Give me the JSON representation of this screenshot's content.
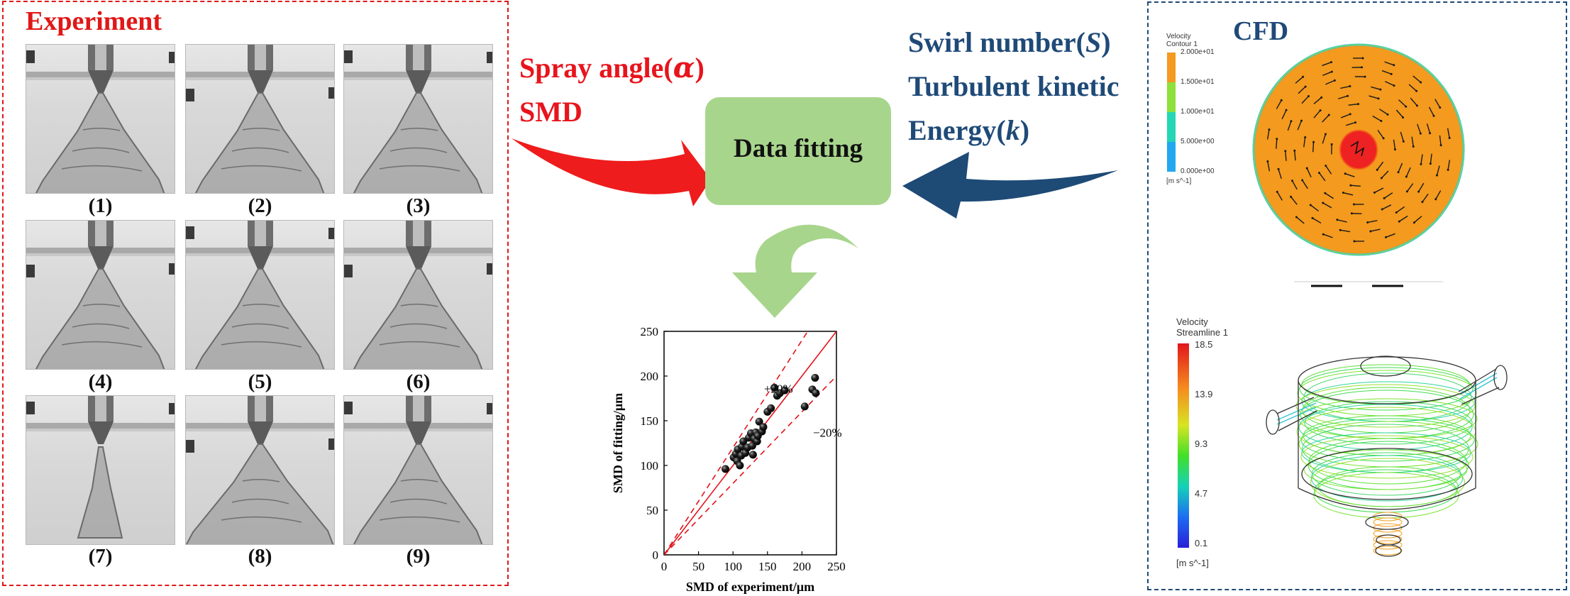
{
  "experiment": {
    "title": "Experiment",
    "photos": [
      {
        "label": "(1)"
      },
      {
        "label": "(2)"
      },
      {
        "label": "(3)"
      },
      {
        "label": "(4)"
      },
      {
        "label": "(5)"
      },
      {
        "label": "(6)"
      },
      {
        "label": "(7)"
      },
      {
        "label": "(8)"
      },
      {
        "label": "(9)"
      }
    ]
  },
  "inputs_left": {
    "line1_prefix": "Spray angle(",
    "line1_symbol": "α",
    "line1_suffix": ")",
    "line2": "SMD"
  },
  "inputs_right": {
    "line1_prefix": "Swirl number(",
    "line1_symbol": "S",
    "line1_suffix": ")",
    "line2": "Turbulent kinetic",
    "line3_prefix": "Energy(",
    "line3_symbol": "k",
    "line3_suffix": ")"
  },
  "fitting": {
    "label": "Data fitting"
  },
  "cfd": {
    "title": "CFD",
    "contour_legend": {
      "title1": "Velocity",
      "title2": "Contour 1",
      "ticks": [
        "2.000e+01",
        "1.500e+01",
        "1.000e+01",
        "5.000e+00",
        "0.000e+00"
      ],
      "unit": "[m s^-1]",
      "colors": [
        "#f39a1f",
        "#8ee03a",
        "#25d6b4",
        "#22a8f0"
      ]
    },
    "stream_legend": {
      "title1": "Velocity",
      "title2": "Streamline 1",
      "ticks": [
        "18.5",
        "13.9",
        "9.3",
        "4.7",
        "0.1"
      ],
      "unit": "[m s^-1]"
    }
  },
  "chart_data": {
    "type": "scatter",
    "xlabel": "SMD of experiment/μm",
    "ylabel": "SMD of fitting/μm",
    "xlim": [
      0,
      250
    ],
    "ylim": [
      0,
      250
    ],
    "xticks": [
      0,
      50,
      100,
      150,
      200,
      250
    ],
    "yticks": [
      0,
      50,
      100,
      150,
      200,
      250
    ],
    "reference_lines": [
      {
        "name": "y = x",
        "slope": 1.0,
        "style": "solid"
      },
      {
        "name": "+20%",
        "slope": 1.2,
        "style": "dashed"
      },
      {
        "name": "-20%",
        "slope": 0.8,
        "style": "dashed"
      }
    ],
    "annotations": [
      "+20%",
      "−20%"
    ],
    "points": [
      [
        89,
        96
      ],
      [
        101,
        109
      ],
      [
        104,
        113
      ],
      [
        106,
        105
      ],
      [
        107,
        118
      ],
      [
        110,
        100
      ],
      [
        112,
        111
      ],
      [
        113,
        121
      ],
      [
        115,
        127
      ],
      [
        118,
        114
      ],
      [
        121,
        120
      ],
      [
        123,
        131
      ],
      [
        126,
        136
      ],
      [
        128,
        122
      ],
      [
        129,
        112
      ],
      [
        131,
        130
      ],
      [
        133,
        137
      ],
      [
        135,
        127
      ],
      [
        136,
        133
      ],
      [
        138,
        149
      ],
      [
        142,
        138
      ],
      [
        144,
        143
      ],
      [
        150,
        160
      ],
      [
        155,
        164
      ],
      [
        160,
        187
      ],
      [
        164,
        178
      ],
      [
        168,
        181
      ],
      [
        175,
        184
      ],
      [
        204,
        166
      ],
      [
        215,
        185
      ],
      [
        219,
        198
      ],
      [
        220,
        181
      ]
    ]
  }
}
